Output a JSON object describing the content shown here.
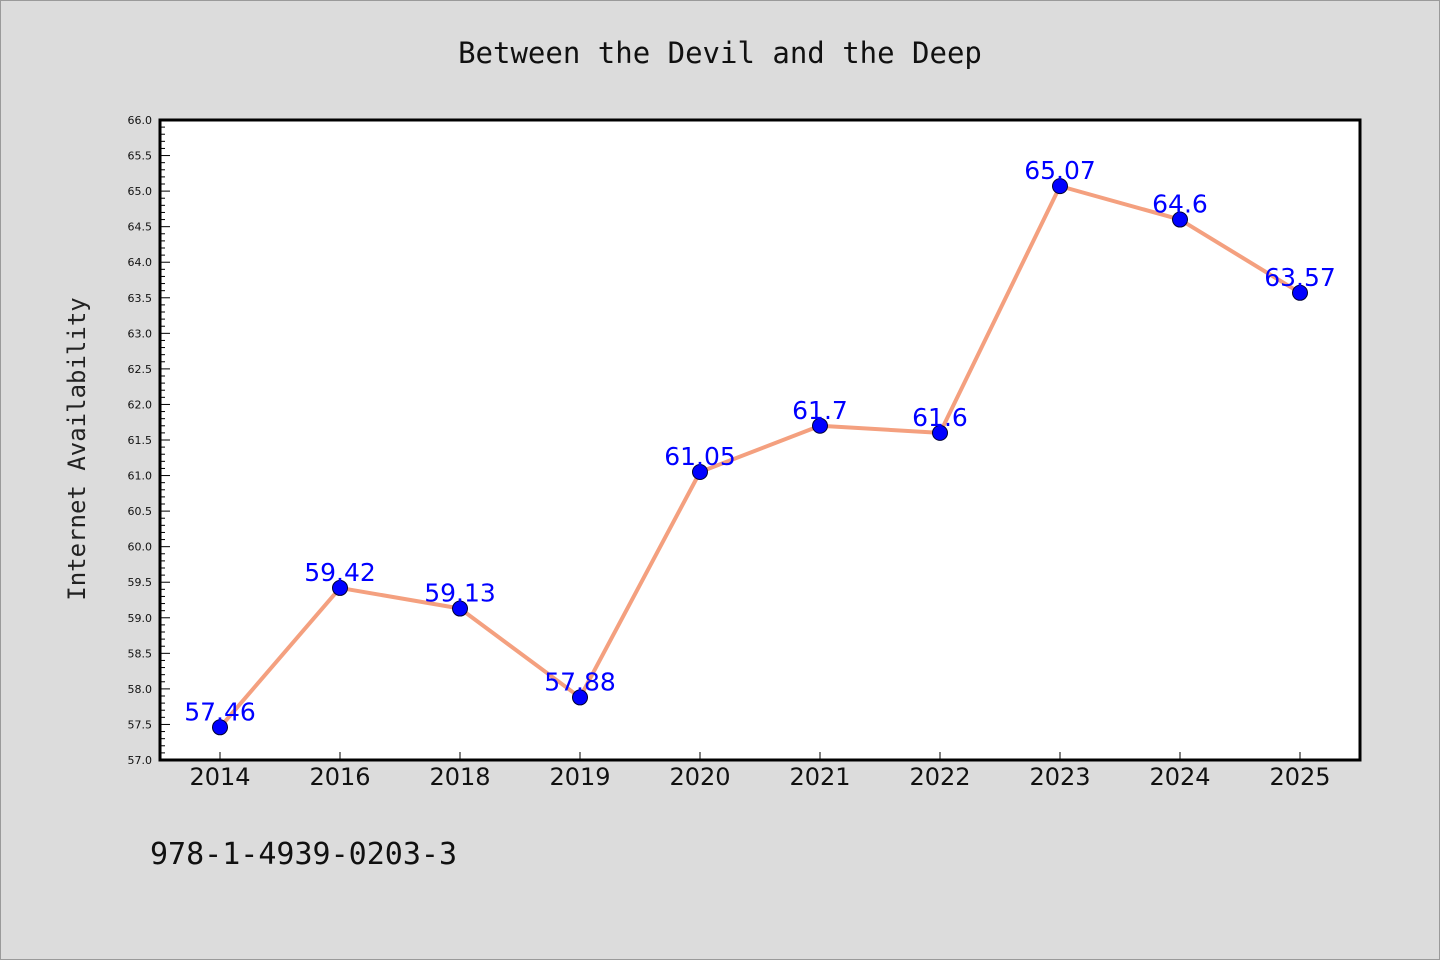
{
  "chart_data": {
    "type": "line",
    "title": "Between the Devil and the Deep",
    "xlabel": "",
    "ylabel": "Internet Availability",
    "categories": [
      "2014",
      "2016",
      "2018",
      "2019",
      "2020",
      "2021",
      "2022",
      "2023",
      "2024",
      "2025"
    ],
    "series": [
      {
        "values": [
          57.46,
          59.42,
          59.13,
          57.88,
          61.05,
          61.7,
          61.6,
          65.07,
          64.6,
          63.57
        ],
        "data_labels": [
          "57.46",
          "59.42",
          "59.13",
          "57.88",
          "61.05",
          "61.7",
          "61.6",
          "65.07",
          "64.6",
          "63.57"
        ]
      }
    ],
    "ylim": [
      57.0,
      66.0
    ],
    "y_ticks": [
      "57.0",
      "57.5",
      "58.0",
      "58.5",
      "59.0",
      "59.5",
      "60.0",
      "60.5",
      "61.0",
      "61.5",
      "62.0",
      "62.5",
      "63.0",
      "63.5",
      "64.0",
      "64.5",
      "65.0",
      "65.5",
      "66.0"
    ],
    "grid": false,
    "legend": "none"
  },
  "footer": {
    "isbn": "978-1-4939-0203-3"
  },
  "colors": {
    "background": "#dcdcdc",
    "plot_area": "#ffffff",
    "line": "#f4a07f",
    "marker": "#0000ff",
    "data_label": "#0000ff"
  }
}
